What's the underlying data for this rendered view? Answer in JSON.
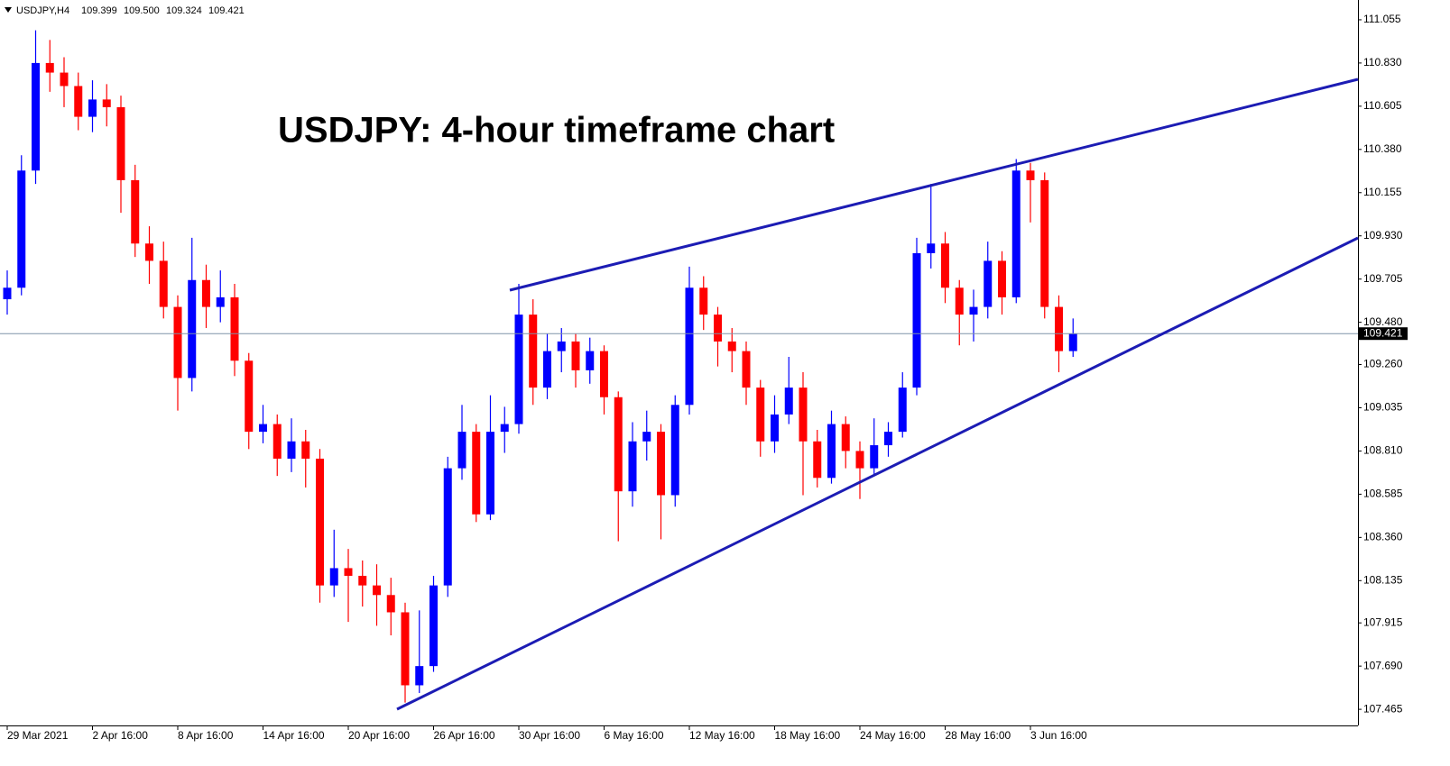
{
  "chart_data": {
    "type": "candlestick",
    "title": "USDJPY: 4-hour timeframe chart",
    "symbol": "USDJPY,H4",
    "ohlc_readout": [
      109.399,
      {
        "value": 109.5,
        "label": "109.500"
      },
      109.324,
      109.421
    ],
    "current_price": 109.421,
    "up_color": "#0000ff",
    "down_color": "#ff0000",
    "categories": [
      "29 Mar 2021",
      null,
      null,
      null,
      null,
      null,
      "2 Apr 16:00",
      null,
      null,
      null,
      null,
      null,
      "8 Apr 16:00",
      null,
      null,
      null,
      null,
      null,
      "14 Apr 16:00",
      null,
      null,
      null,
      null,
      null,
      "20 Apr 16:00",
      null,
      null,
      null,
      null,
      null,
      "26 Apr 16:00",
      null,
      null,
      null,
      null,
      null,
      "30 Apr 16:00",
      null,
      null,
      null,
      null,
      null,
      "6 May 16:00",
      null,
      null,
      null,
      null,
      null,
      "12 May 16:00",
      null,
      null,
      null,
      null,
      null,
      "18 May 16:00",
      null,
      null,
      null,
      null,
      null,
      "24 May 16:00",
      null,
      null,
      null,
      null,
      null,
      "28 May 16:00",
      null,
      null,
      null,
      null,
      null,
      "3 Jun 16:00",
      null,
      null,
      null
    ],
    "open": [
      109.6,
      109.66,
      110.27,
      110.83,
      110.78,
      110.71,
      110.55,
      110.64,
      110.6,
      110.22,
      109.89,
      109.8,
      109.56,
      109.19,
      109.7,
      109.56,
      109.61,
      109.28,
      108.91,
      108.95,
      108.77,
      108.86,
      108.77,
      108.11,
      108.2,
      108.16,
      108.11,
      108.06,
      107.97,
      107.59,
      107.69,
      108.11,
      108.72,
      108.91,
      108.48,
      108.91,
      108.95,
      109.52,
      109.14,
      109.33,
      109.38,
      109.23,
      109.33,
      109.09,
      108.6,
      108.86,
      108.91,
      108.58,
      109.05,
      109.66,
      109.52,
      109.38,
      109.33,
      109.14,
      108.86,
      109.0,
      109.14,
      108.86,
      108.67,
      108.95,
      108.81,
      108.72,
      108.84,
      108.91,
      109.14,
      109.84,
      109.89,
      109.66,
      109.52,
      109.56,
      109.8,
      109.61,
      110.27,
      110.22,
      109.56,
      109.33
    ],
    "high": [
      109.75,
      110.35,
      111.0,
      110.95,
      110.86,
      110.78,
      110.74,
      110.72,
      110.66,
      110.3,
      109.98,
      109.9,
      109.62,
      109.92,
      109.78,
      109.75,
      109.68,
      109.32,
      109.05,
      109.0,
      108.98,
      108.92,
      108.82,
      108.4,
      108.3,
      108.24,
      108.22,
      108.15,
      108.02,
      107.98,
      108.16,
      108.78,
      109.05,
      108.95,
      109.1,
      109.04,
      109.68,
      109.6,
      109.42,
      109.45,
      109.42,
      109.4,
      109.36,
      109.12,
      108.96,
      109.02,
      108.95,
      109.1,
      109.77,
      109.72,
      109.56,
      109.45,
      109.38,
      109.18,
      109.1,
      109.3,
      109.22,
      108.92,
      109.02,
      108.99,
      108.86,
      108.98,
      108.96,
      109.22,
      109.92,
      110.2,
      109.95,
      109.7,
      109.65,
      109.9,
      109.85,
      110.33,
      110.31,
      110.26,
      109.62,
      109.5
    ],
    "low": [
      109.52,
      109.62,
      110.2,
      110.68,
      110.6,
      110.48,
      110.47,
      110.5,
      110.05,
      109.82,
      109.68,
      109.5,
      109.02,
      109.12,
      109.45,
      109.48,
      109.2,
      108.82,
      108.85,
      108.68,
      108.7,
      108.62,
      108.02,
      108.05,
      107.92,
      108.0,
      107.9,
      107.85,
      107.5,
      107.55,
      107.66,
      108.05,
      108.66,
      108.44,
      108.45,
      108.8,
      108.9,
      109.05,
      109.08,
      109.22,
      109.14,
      109.16,
      109.0,
      108.34,
      108.52,
      108.76,
      108.35,
      108.52,
      109.0,
      109.44,
      109.25,
      109.22,
      109.05,
      108.78,
      108.8,
      108.95,
      108.58,
      108.62,
      108.64,
      108.72,
      108.56,
      108.68,
      108.78,
      108.88,
      109.1,
      109.76,
      109.58,
      109.36,
      109.38,
      109.5,
      109.52,
      109.58,
      110.0,
      109.5,
      109.22,
      109.3
    ],
    "close": [
      109.66,
      110.27,
      110.83,
      110.78,
      110.71,
      110.55,
      110.64,
      110.6,
      110.22,
      109.89,
      109.8,
      109.56,
      109.19,
      109.7,
      109.56,
      109.61,
      109.28,
      108.91,
      108.95,
      108.77,
      108.86,
      108.77,
      108.11,
      108.2,
      108.16,
      108.11,
      108.06,
      107.97,
      107.59,
      107.69,
      108.11,
      108.72,
      108.91,
      108.48,
      108.91,
      108.95,
      109.52,
      109.14,
      109.33,
      109.38,
      109.23,
      109.33,
      109.09,
      108.6,
      108.86,
      108.91,
      108.58,
      109.05,
      109.66,
      109.52,
      109.38,
      109.33,
      109.14,
      108.86,
      109.0,
      109.14,
      108.86,
      108.67,
      108.95,
      108.81,
      108.72,
      108.84,
      108.91,
      109.14,
      109.84,
      109.89,
      109.66,
      109.52,
      109.56,
      109.8,
      109.61,
      110.27,
      110.22,
      109.56,
      109.33,
      109.421
    ],
    "ylim": [
      107.381,
      111.158
    ],
    "yticks": [
      111.055,
      {
        "value": 110.83,
        "label": "110.830"
      },
      110.605,
      {
        "value": 110.38,
        "label": "110.380"
      },
      110.155,
      {
        "value": 109.93,
        "label": "109.930"
      },
      109.705,
      {
        "value": 109.48,
        "label": "109.480"
      },
      {
        "value": 109.26,
        "label": "109.260"
      },
      109.035,
      {
        "value": 108.81,
        "label": "108.810"
      },
      108.585,
      {
        "value": 108.36,
        "label": "108.360"
      },
      108.135,
      107.915,
      {
        "value": 107.69,
        "label": "107.690"
      },
      107.465
    ]
  }
}
